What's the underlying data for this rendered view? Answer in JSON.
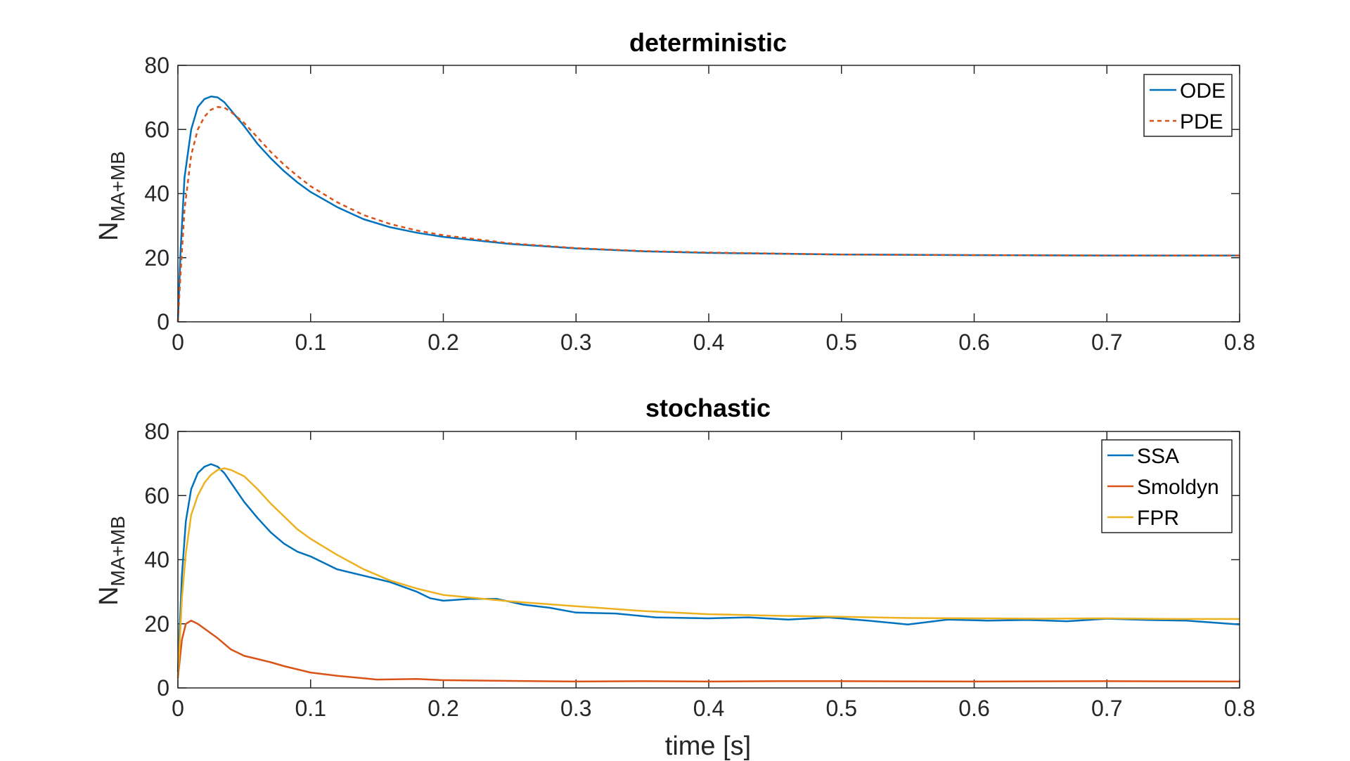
{
  "chart_data": [
    {
      "type": "line",
      "title": "deterministic",
      "xlabel": "",
      "ylabel_main": "N",
      "ylabel_sub": "MA+MB",
      "xlim": [
        0,
        0.8
      ],
      "ylim": [
        0,
        80
      ],
      "xticks": [
        "0",
        "0.1",
        "0.2",
        "0.3",
        "0.4",
        "0.5",
        "0.6",
        "0.7",
        "0.8"
      ],
      "yticks": [
        "0",
        "20",
        "40",
        "60",
        "80"
      ],
      "grid": false,
      "legend_position": "top-right",
      "series": [
        {
          "name": "ODE",
          "color": "#0072BD",
          "dash": "solid",
          "x": [
            0,
            0.002,
            0.005,
            0.01,
            0.015,
            0.02,
            0.025,
            0.03,
            0.035,
            0.04,
            0.05,
            0.06,
            0.07,
            0.08,
            0.09,
            0.1,
            0.12,
            0.14,
            0.16,
            0.18,
            0.2,
            0.25,
            0.3,
            0.35,
            0.4,
            0.5,
            0.6,
            0.7,
            0.8
          ],
          "y": [
            0,
            22,
            45,
            60,
            67,
            69.5,
            70.3,
            70,
            68.5,
            66,
            61,
            55.5,
            51,
            47,
            43.5,
            40.5,
            35.8,
            32,
            29.5,
            27.8,
            26.5,
            24.3,
            22.9,
            22,
            21.5,
            21,
            20.8,
            20.7,
            20.7
          ]
        },
        {
          "name": "PDE",
          "color": "#D95319",
          "dash": "dashed",
          "x": [
            0,
            0.002,
            0.005,
            0.01,
            0.015,
            0.02,
            0.025,
            0.03,
            0.035,
            0.04,
            0.05,
            0.06,
            0.07,
            0.08,
            0.09,
            0.1,
            0.12,
            0.14,
            0.16,
            0.18,
            0.2,
            0.25,
            0.3,
            0.35,
            0.4,
            0.5,
            0.6,
            0.7,
            0.8
          ],
          "y": [
            0,
            15,
            35,
            52,
            60,
            64,
            66.2,
            67,
            66.8,
            65.5,
            62,
            57.5,
            53,
            49,
            45.5,
            42.3,
            37.3,
            33.3,
            30.5,
            28.5,
            27,
            24.5,
            23,
            22.1,
            21.6,
            21,
            20.8,
            20.7,
            20.7
          ]
        }
      ]
    },
    {
      "type": "line",
      "title": "stochastic",
      "xlabel": "time [s]",
      "ylabel_main": "N",
      "ylabel_sub": "MA+MB",
      "xlim": [
        0,
        0.8
      ],
      "ylim": [
        0,
        80
      ],
      "xticks": [
        "0",
        "0.1",
        "0.2",
        "0.3",
        "0.4",
        "0.5",
        "0.6",
        "0.7",
        "0.8"
      ],
      "yticks": [
        "0",
        "20",
        "40",
        "60",
        "80"
      ],
      "grid": false,
      "legend_position": "top-right",
      "series": [
        {
          "name": "SSA",
          "color": "#0072BD",
          "dash": "solid",
          "x": [
            0,
            0.003,
            0.006,
            0.01,
            0.015,
            0.02,
            0.025,
            0.03,
            0.035,
            0.04,
            0.05,
            0.06,
            0.07,
            0.08,
            0.09,
            0.1,
            0.12,
            0.14,
            0.16,
            0.18,
            0.19,
            0.2,
            0.22,
            0.24,
            0.26,
            0.28,
            0.3,
            0.33,
            0.36,
            0.4,
            0.43,
            0.46,
            0.49,
            0.52,
            0.55,
            0.58,
            0.61,
            0.64,
            0.67,
            0.7,
            0.73,
            0.76,
            0.8
          ],
          "y": [
            5,
            35,
            52,
            62,
            67,
            69,
            69.8,
            69,
            67,
            64,
            58,
            53,
            48.5,
            45,
            42.5,
            41,
            37,
            35,
            33,
            30,
            28,
            27.2,
            27.8,
            27.8,
            26,
            25,
            23.5,
            23.2,
            22,
            21.7,
            22,
            21.3,
            22,
            21,
            19.8,
            21.3,
            21,
            21.2,
            20.8,
            21.6,
            21.2,
            21,
            19.8
          ]
        },
        {
          "name": "Smoldyn",
          "color": "#D95319",
          "dash": "solid",
          "x": [
            0,
            0.003,
            0.006,
            0.01,
            0.015,
            0.02,
            0.03,
            0.04,
            0.05,
            0.06,
            0.07,
            0.08,
            0.1,
            0.12,
            0.15,
            0.18,
            0.2,
            0.25,
            0.3,
            0.35,
            0.4,
            0.45,
            0.5,
            0.6,
            0.7,
            0.8
          ],
          "y": [
            3,
            15,
            20,
            21,
            20,
            18.5,
            15.5,
            12,
            10,
            9,
            8,
            6.8,
            4.8,
            3.8,
            2.6,
            2.8,
            2.4,
            2.2,
            2,
            2.1,
            2,
            2.1,
            2.1,
            2,
            2.1,
            2
          ]
        },
        {
          "name": "FPR",
          "color": "#EDB120",
          "dash": "solid",
          "x": [
            0,
            0.003,
            0.006,
            0.01,
            0.015,
            0.02,
            0.025,
            0.03,
            0.035,
            0.04,
            0.05,
            0.06,
            0.07,
            0.08,
            0.09,
            0.1,
            0.12,
            0.14,
            0.16,
            0.18,
            0.2,
            0.25,
            0.3,
            0.35,
            0.4,
            0.45,
            0.5,
            0.55,
            0.6,
            0.65,
            0.7,
            0.75,
            0.8
          ],
          "y": [
            3,
            28,
            42,
            54,
            60,
            64,
            66.5,
            68,
            68.5,
            68,
            66,
            62,
            57.5,
            53.5,
            49.5,
            46.5,
            41.5,
            37,
            33.5,
            31,
            29,
            27,
            25.5,
            24,
            23,
            22.5,
            22.2,
            21.8,
            21.7,
            21.6,
            21.7,
            21.5,
            21.5
          ]
        }
      ]
    }
  ]
}
